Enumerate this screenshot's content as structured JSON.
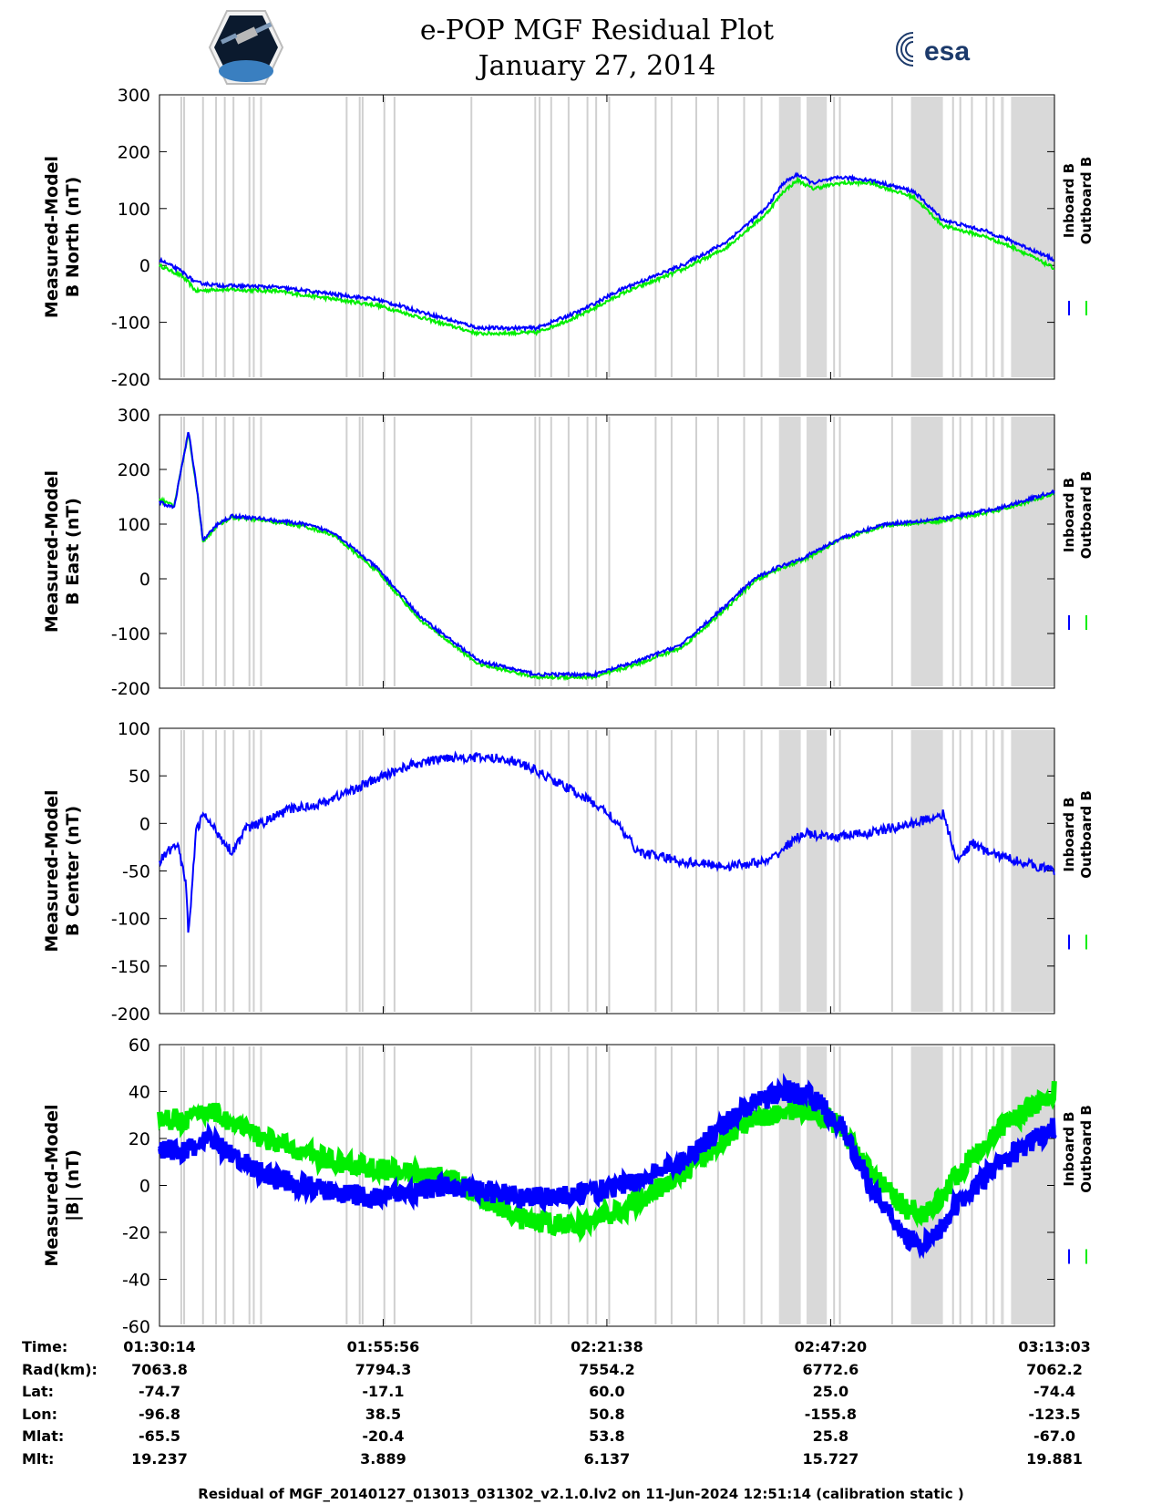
{
  "header": {
    "title": "e-POP MGF Residual Plot",
    "date": "January 27, 2014",
    "logo_left": "epop-cassiope-logo",
    "logo_right_text": "esa"
  },
  "chart_data": [
    {
      "type": "line",
      "ylabel_line1": "Measured-Model",
      "ylabel_line2": "B North (nT)",
      "ylim": [
        -200,
        300
      ],
      "yticks": [
        300,
        200,
        100,
        0,
        -100,
        -200
      ],
      "xlim_seconds": [
        0,
        6169
      ],
      "legend": [
        "Inboard B",
        "Outboard B"
      ],
      "series": [
        {
          "name": "Inboard B",
          "color": "#0000ff",
          "x": [
            0,
            150,
            200,
            250,
            400,
            800,
            1500,
            2200,
            2600,
            2900,
            3200,
            3600,
            3900,
            4180,
            4300,
            4400,
            4500,
            4700,
            4900,
            5200,
            5400,
            5700,
            5900,
            6169
          ],
          "y": [
            10,
            -10,
            -20,
            -30,
            -35,
            -38,
            -60,
            -110,
            -110,
            -80,
            -40,
            0,
            40,
            100,
            145,
            160,
            145,
            155,
            150,
            130,
            80,
            60,
            40,
            10
          ]
        },
        {
          "name": "Outboard B",
          "color": "#00ee00",
          "x": [
            0,
            150,
            200,
            250,
            400,
            800,
            1500,
            2200,
            2600,
            2900,
            3200,
            3600,
            3900,
            4180,
            4300,
            4400,
            4500,
            4700,
            4900,
            5200,
            5400,
            5700,
            5900,
            6169
          ],
          "y": [
            0,
            -18,
            -30,
            -45,
            -42,
            -45,
            -70,
            -120,
            -118,
            -88,
            -48,
            -8,
            30,
            90,
            130,
            150,
            135,
            145,
            145,
            120,
            70,
            50,
            30,
            -5
          ]
        }
      ]
    },
    {
      "type": "line",
      "ylabel_line1": "Measured-Model",
      "ylabel_line2": "B East (nT)",
      "ylim": [
        -200,
        300
      ],
      "yticks": [
        300,
        200,
        100,
        0,
        -100,
        -200
      ],
      "xlim_seconds": [
        0,
        6169
      ],
      "legend": [
        "Inboard B",
        "Outboard B"
      ],
      "series": [
        {
          "name": "Inboard B",
          "color": "#0000ff",
          "x": [
            0,
            100,
            200,
            260,
            300,
            400,
            500,
            700,
            1000,
            1200,
            1500,
            1800,
            2200,
            2600,
            3000,
            3300,
            3600,
            3900,
            4100,
            4250,
            4450,
            4700,
            5000,
            5400,
            5800,
            6169
          ],
          "y": [
            140,
            130,
            270,
            160,
            70,
            100,
            115,
            110,
            100,
            85,
            20,
            -70,
            -150,
            -175,
            -175,
            -150,
            -120,
            -50,
            0,
            20,
            40,
            75,
            100,
            110,
            130,
            160
          ]
        },
        {
          "name": "Outboard B",
          "color": "#00ee00",
          "x": [
            0,
            100,
            200,
            260,
            300,
            400,
            500,
            700,
            1000,
            1200,
            1500,
            1800,
            2200,
            2600,
            3000,
            3300,
            3600,
            3900,
            4100,
            4250,
            4450,
            4700,
            5000,
            5400,
            5800,
            6169
          ],
          "y": [
            145,
            133,
            268,
            158,
            68,
            98,
            112,
            107,
            96,
            80,
            14,
            -76,
            -156,
            -180,
            -180,
            -155,
            -126,
            -56,
            -5,
            16,
            36,
            72,
            98,
            106,
            126,
            155
          ]
        }
      ]
    },
    {
      "type": "line",
      "ylabel_line1": "Measured-Model",
      "ylabel_line2": "B Center (nT)",
      "ylim": [
        -200,
        100
      ],
      "yticks": [
        100,
        50,
        0,
        -50,
        -100,
        -150,
        -200
      ],
      "xlim_seconds": [
        0,
        6169
      ],
      "legend": [
        "Inboard B",
        "Outboard B"
      ],
      "series": [
        {
          "name": "Inboard B",
          "color": "#0000ff",
          "x": [
            0,
            120,
            180,
            200,
            250,
            300,
            400,
            500,
            600,
            700,
            900,
            1100,
            1400,
            1700,
            2000,
            2400,
            2600,
            2900,
            3100,
            3300,
            3600,
            3900,
            4200,
            4350,
            4450,
            4600,
            4900,
            5200,
            5400,
            5500,
            5600,
            5700,
            6169
          ],
          "y": [
            -40,
            -20,
            -60,
            -120,
            -10,
            10,
            -10,
            -30,
            -5,
            0,
            15,
            20,
            40,
            60,
            70,
            68,
            55,
            30,
            10,
            -30,
            -40,
            -45,
            -40,
            -20,
            -10,
            -15,
            -10,
            0,
            10,
            -40,
            -20,
            -30,
            -50
          ]
        }
      ]
    },
    {
      "type": "line",
      "ylabel_line1": "Measured-Model",
      "ylabel_line2": "|B| (nT)",
      "ylim": [
        -60,
        60
      ],
      "yticks": [
        60,
        40,
        20,
        0,
        -20,
        -40,
        -60
      ],
      "xlim_seconds": [
        0,
        6169
      ],
      "legend": [
        "Inboard B",
        "Outboard B"
      ],
      "series": [
        {
          "name": "Inboard B",
          "color": "#0000ff",
          "x": [
            0,
            200,
            350,
            500,
            800,
            1200,
            1500,
            2000,
            2500,
            2900,
            3200,
            3600,
            4000,
            4300,
            4500,
            4700,
            4900,
            5150,
            5300,
            5500,
            5800,
            6169
          ],
          "y": [
            15,
            15,
            20,
            12,
            3,
            -3,
            -5,
            0,
            -5,
            -4,
            0,
            10,
            32,
            40,
            38,
            25,
            0,
            -22,
            -25,
            -8,
            10,
            25
          ]
        },
        {
          "name": "Outboard B",
          "color": "#00ee00",
          "x": [
            0,
            200,
            350,
            500,
            800,
            1200,
            1500,
            2000,
            2500,
            2900,
            3200,
            3600,
            4000,
            4300,
            4500,
            4700,
            4900,
            5150,
            5300,
            5500,
            5800,
            6169
          ],
          "y": [
            28,
            28,
            33,
            26,
            18,
            10,
            7,
            3,
            -15,
            -17,
            -10,
            5,
            25,
            32,
            32,
            25,
            5,
            -10,
            -12,
            5,
            25,
            40
          ]
        }
      ]
    }
  ],
  "gray_bands_seconds": [
    [
      4270,
      4420
    ],
    [
      4460,
      4600
    ],
    [
      5180,
      5400
    ],
    [
      5800,
      5820
    ],
    [
      5870,
      6169
    ]
  ],
  "gray_lines_seconds": [
    150,
    170,
    300,
    390,
    450,
    510,
    620,
    650,
    700,
    1290,
    1380,
    1400,
    1550,
    1620,
    2150,
    2590,
    2620,
    2700,
    2820,
    2950,
    3010,
    3100,
    3420,
    3530,
    3700,
    3850,
    4030,
    4150,
    4650,
    4690,
    5050,
    5470,
    5520,
    5600,
    5700,
    5750
  ],
  "x_ticks_seconds": [
    0,
    1542,
    3084,
    4626,
    6169
  ],
  "ephemeris": {
    "labels": [
      "Time:",
      "Rad(km):",
      "Lat:",
      "Lon:",
      "Mlat:",
      "Mlt:"
    ],
    "columns": [
      [
        "01:30:14",
        "7063.8",
        "-74.7",
        "-96.8",
        "-65.5",
        "19.237"
      ],
      [
        "01:55:56",
        "7794.3",
        "-17.1",
        "38.5",
        "-20.4",
        "3.889"
      ],
      [
        "02:21:38",
        "7554.2",
        "60.0",
        "50.8",
        "53.8",
        "6.137"
      ],
      [
        "02:47:20",
        "6772.6",
        "25.0",
        "-155.8",
        "25.8",
        "15.727"
      ],
      [
        "03:13:03",
        "7062.2",
        "-74.4",
        "-123.5",
        "-67.0",
        "19.881"
      ]
    ]
  },
  "footer": "Residual of MGF_20140127_013013_031302_v2.1.0.lv2 on 11-Jun-2024 12:51:14 (calibration static )"
}
